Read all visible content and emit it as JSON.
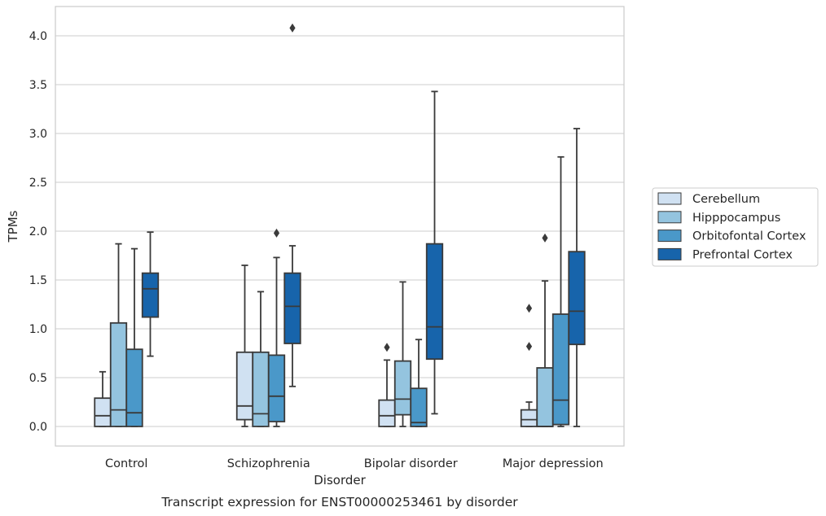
{
  "chart_data": {
    "type": "boxplot",
    "title": "Transcript expression for ENST00000253461 by disorder",
    "xlabel": "Disorder",
    "ylabel": "TPMs",
    "ylim": [
      -0.2,
      4.3
    ],
    "yticks": [
      0.0,
      0.5,
      1.0,
      1.5,
      2.0,
      2.5,
      3.0,
      3.5,
      4.0
    ],
    "ytick_labels": [
      "0.0",
      "0.5",
      "1.0",
      "1.5",
      "2.0",
      "2.5",
      "3.0",
      "3.5",
      "4.0"
    ],
    "grid": "horizontal",
    "legend_position": "right",
    "categories": [
      "Control",
      "Schizophrenia",
      "Bipolar disorder",
      "Major depression"
    ],
    "series": [
      {
        "name": "Cerebellum",
        "color": "#d0e1f2",
        "boxes": [
          {
            "whisker_low": 0.0,
            "q1": 0.0,
            "median": 0.11,
            "q3": 0.29,
            "whisker_high": 0.56,
            "outliers": []
          },
          {
            "whisker_low": 0.0,
            "q1": 0.07,
            "median": 0.21,
            "q3": 0.76,
            "whisker_high": 1.65,
            "outliers": []
          },
          {
            "whisker_low": 0.0,
            "q1": 0.0,
            "median": 0.11,
            "q3": 0.27,
            "whisker_high": 0.68,
            "outliers": [
              0.81
            ]
          },
          {
            "whisker_low": 0.0,
            "q1": 0.0,
            "median": 0.07,
            "q3": 0.17,
            "whisker_high": 0.25,
            "outliers": [
              0.82,
              1.21
            ]
          }
        ]
      },
      {
        "name": "Hipppocampus",
        "color": "#94c4df",
        "boxes": [
          {
            "whisker_low": 0.0,
            "q1": 0.0,
            "median": 0.17,
            "q3": 1.06,
            "whisker_high": 1.87,
            "outliers": []
          },
          {
            "whisker_low": 0.0,
            "q1": 0.0,
            "median": 0.13,
            "q3": 0.76,
            "whisker_high": 1.38,
            "outliers": []
          },
          {
            "whisker_low": 0.0,
            "q1": 0.12,
            "median": 0.28,
            "q3": 0.67,
            "whisker_high": 1.48,
            "outliers": []
          },
          {
            "whisker_low": 0.0,
            "q1": 0.0,
            "median": 0.0,
            "q3": 0.6,
            "whisker_high": 1.49,
            "outliers": [
              1.93
            ]
          }
        ]
      },
      {
        "name": "Orbitofontal Cortex",
        "color": "#4a98c9",
        "boxes": [
          {
            "whisker_low": 0.0,
            "q1": 0.0,
            "median": 0.14,
            "q3": 0.79,
            "whisker_high": 1.82,
            "outliers": []
          },
          {
            "whisker_low": 0.0,
            "q1": 0.05,
            "median": 0.31,
            "q3": 0.73,
            "whisker_high": 1.73,
            "outliers": [
              1.98
            ]
          },
          {
            "whisker_low": 0.0,
            "q1": 0.0,
            "median": 0.04,
            "q3": 0.39,
            "whisker_high": 0.89,
            "outliers": []
          },
          {
            "whisker_low": 0.0,
            "q1": 0.02,
            "median": 0.27,
            "q3": 1.15,
            "whisker_high": 2.76,
            "outliers": []
          }
        ]
      },
      {
        "name": "Prefrontal Cortex",
        "color": "#1764ab",
        "boxes": [
          {
            "whisker_low": 0.72,
            "q1": 1.12,
            "median": 1.41,
            "q3": 1.57,
            "whisker_high": 1.99,
            "outliers": []
          },
          {
            "whisker_low": 0.41,
            "q1": 0.85,
            "median": 1.23,
            "q3": 1.57,
            "whisker_high": 1.85,
            "outliers": [
              4.08
            ]
          },
          {
            "whisker_low": 0.13,
            "q1": 0.69,
            "median": 1.02,
            "q3": 1.87,
            "whisker_high": 3.43,
            "outliers": []
          },
          {
            "whisker_low": 0.0,
            "q1": 0.84,
            "median": 1.18,
            "q3": 1.79,
            "whisker_high": 3.05,
            "outliers": []
          }
        ]
      }
    ]
  }
}
